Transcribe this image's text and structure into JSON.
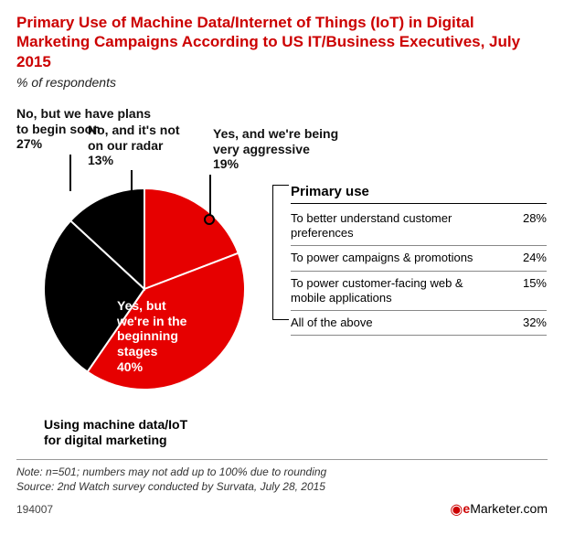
{
  "title": "Primary Use of Machine Data/Internet of Things (IoT) in Digital Marketing Campaigns According to US IT/Business Executives, July 2015",
  "subtitle": "% of respondents",
  "footer_note": "Note: n=501; numbers may not add up to 100% due to rounding",
  "footer_source": "Source: 2nd Watch survey conducted by Survata, July 28, 2015",
  "chart_id": "194007",
  "logo_text": "Marketer.com",
  "chart": {
    "type": "pie",
    "radius": 110,
    "slices": [
      {
        "label": "Yes, and we're being very aggressive",
        "value": 19,
        "color": "#e60000"
      },
      {
        "label": "Yes, but we're in the beginning stages",
        "value": 40,
        "color": "#e60000"
      },
      {
        "label": "No, but we have plans to begin soon",
        "value": 27,
        "color": "#000000"
      },
      {
        "label": "No, and it's not on our radar",
        "value": 13,
        "color": "#000000"
      }
    ],
    "stroke": "#ffffff",
    "stroke_width": 2
  },
  "slice0_label": "Yes, and we're being\nvery aggressive",
  "slice0_pct": "19%",
  "slice1_label": "Yes, but\nwe're in the\nbeginning\nstages",
  "slice1_pct": "40%",
  "slice2_label": "No, but we have plans\nto begin soon",
  "slice2_pct": "27%",
  "slice3_label": "No, and it's not\non our radar",
  "slice3_pct": "13%",
  "bottom_label": "Using machine data/IoT\nfor digital marketing",
  "table": {
    "header": "Primary use",
    "rows": [
      {
        "label": "To better understand customer preferences",
        "pct": "28%"
      },
      {
        "label": "To power campaigns & promotions",
        "pct": "24%"
      },
      {
        "label": "To power customer-facing web & mobile applications",
        "pct": "15%"
      },
      {
        "label": "All of the above",
        "pct": "32%"
      }
    ]
  }
}
